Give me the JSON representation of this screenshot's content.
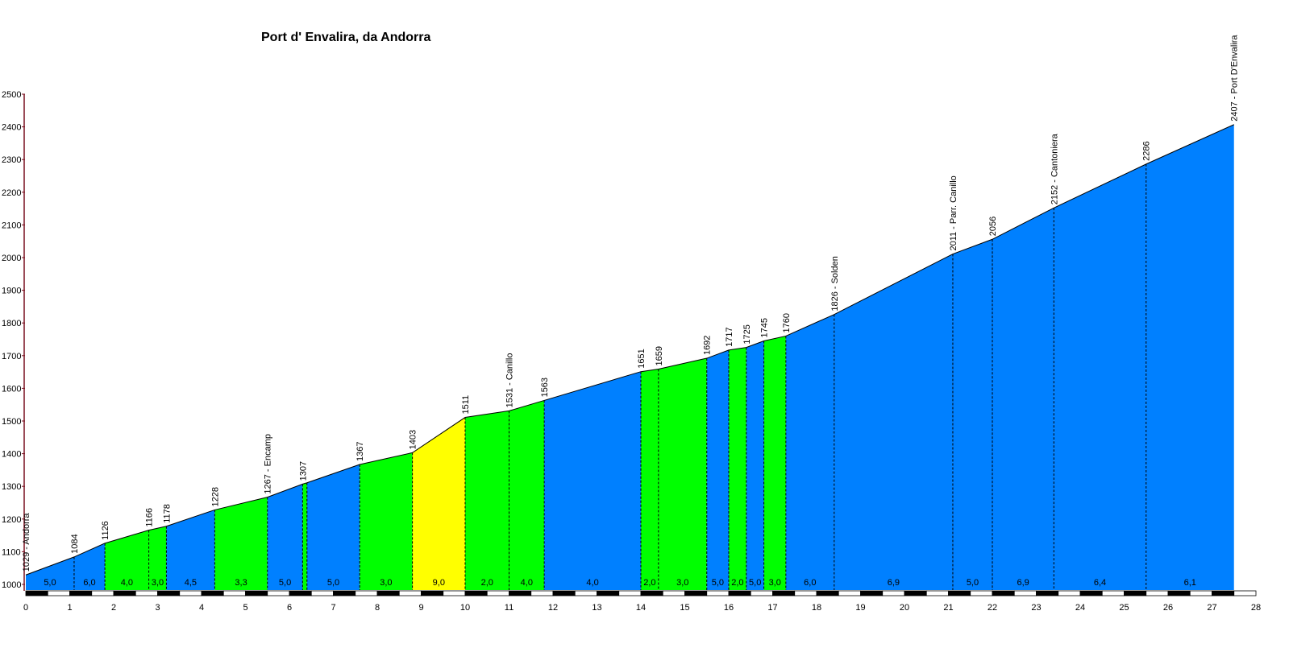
{
  "chart_data": {
    "type": "area",
    "title": "Port d' Envalira, da Andorra",
    "xlabel": "",
    "ylabel": "",
    "xlim": [
      0,
      28
    ],
    "ylim": [
      1000,
      2500
    ],
    "x_ticks": [
      "0",
      "1",
      "2",
      "3",
      "4",
      "5",
      "6",
      "7",
      "8",
      "9",
      "10",
      "11",
      "12",
      "13",
      "14",
      "15",
      "16",
      "17",
      "18",
      "19",
      "20",
      "21",
      "22",
      "23",
      "24",
      "25",
      "26",
      "27",
      "28"
    ],
    "y_ticks": [
      "1000",
      "1100",
      "1200",
      "1300",
      "1400",
      "1500",
      "1600",
      "1700",
      "1800",
      "1900",
      "2000",
      "2100",
      "2200",
      "2300",
      "2400",
      "2500"
    ],
    "grid": false,
    "profile": [
      {
        "x": 0.0,
        "y": 1029,
        "label": "1029 - Andorra"
      },
      {
        "x": 1.1,
        "y": 1084,
        "label": "1084"
      },
      {
        "x": 1.8,
        "y": 1126,
        "label": "1126"
      },
      {
        "x": 2.8,
        "y": 1166,
        "label": "1166"
      },
      {
        "x": 3.2,
        "y": 1178,
        "label": "1178"
      },
      {
        "x": 4.3,
        "y": 1228,
        "label": "1228"
      },
      {
        "x": 5.5,
        "y": 1267,
        "label": "1267 - Encamp"
      },
      {
        "x": 6.3,
        "y": 1307,
        "label": "1307"
      },
      {
        "x": 6.4,
        "y": 1311,
        "label": ""
      },
      {
        "x": 7.6,
        "y": 1367,
        "label": "1367"
      },
      {
        "x": 8.8,
        "y": 1403,
        "label": "1403"
      },
      {
        "x": 10.0,
        "y": 1511,
        "label": "1511"
      },
      {
        "x": 11.0,
        "y": 1531,
        "label": "1531 - Canillo"
      },
      {
        "x": 11.8,
        "y": 1563,
        "label": "1563"
      },
      {
        "x": 14.0,
        "y": 1651,
        "label": "1651"
      },
      {
        "x": 14.4,
        "y": 1659,
        "label": "1659"
      },
      {
        "x": 15.5,
        "y": 1692,
        "label": "1692"
      },
      {
        "x": 16.0,
        "y": 1717,
        "label": "1717"
      },
      {
        "x": 16.4,
        "y": 1725,
        "label": "1725"
      },
      {
        "x": 16.8,
        "y": 1745,
        "label": "1745"
      },
      {
        "x": 17.3,
        "y": 1760,
        "label": "1760"
      },
      {
        "x": 18.4,
        "y": 1826,
        "label": "1826 - Solden"
      },
      {
        "x": 21.1,
        "y": 2011,
        "label": "2011 - Parr. Canillo"
      },
      {
        "x": 22.0,
        "y": 2056,
        "label": "2056"
      },
      {
        "x": 23.4,
        "y": 2152,
        "label": "2152 - Cantoniera"
      },
      {
        "x": 25.5,
        "y": 2286,
        "label": "2286"
      },
      {
        "x": 27.5,
        "y": 2407,
        "label": "2407 - Port D'Envalira"
      }
    ],
    "segments": [
      {
        "grade": "5,0",
        "color": "blue"
      },
      {
        "grade": "6,0",
        "color": "blue"
      },
      {
        "grade": "4,0",
        "color": "green"
      },
      {
        "grade": "3,0",
        "color": "green"
      },
      {
        "grade": "4,5",
        "color": "blue"
      },
      {
        "grade": "3,3",
        "color": "green"
      },
      {
        "grade": "5,0",
        "color": "blue"
      },
      {
        "grade": "",
        "color": "green"
      },
      {
        "grade": "5,0",
        "color": "blue"
      },
      {
        "grade": "3,0",
        "color": "green"
      },
      {
        "grade": "9,0",
        "color": "yellow"
      },
      {
        "grade": "2,0",
        "color": "green"
      },
      {
        "grade": "4,0",
        "color": "green"
      },
      {
        "grade": "4,0",
        "color": "blue"
      },
      {
        "grade": "2,0",
        "color": "green"
      },
      {
        "grade": "3,0",
        "color": "green"
      },
      {
        "grade": "5,0",
        "color": "blue"
      },
      {
        "grade": "2,0",
        "color": "green"
      },
      {
        "grade": "5,0",
        "color": "blue"
      },
      {
        "grade": "3,0",
        "color": "green"
      },
      {
        "grade": "6,0",
        "color": "blue"
      },
      {
        "grade": "6,9",
        "color": "blue"
      },
      {
        "grade": "5,0",
        "color": "blue"
      },
      {
        "grade": "6,9",
        "color": "blue"
      },
      {
        "grade": "6,4",
        "color": "blue"
      },
      {
        "grade": "6,1",
        "color": "blue"
      }
    ],
    "colors": {
      "blue": "#0080ff",
      "green": "#00ff00",
      "yellow": "#ffff00",
      "axis": "#7a1020",
      "outline": "#000000"
    }
  }
}
